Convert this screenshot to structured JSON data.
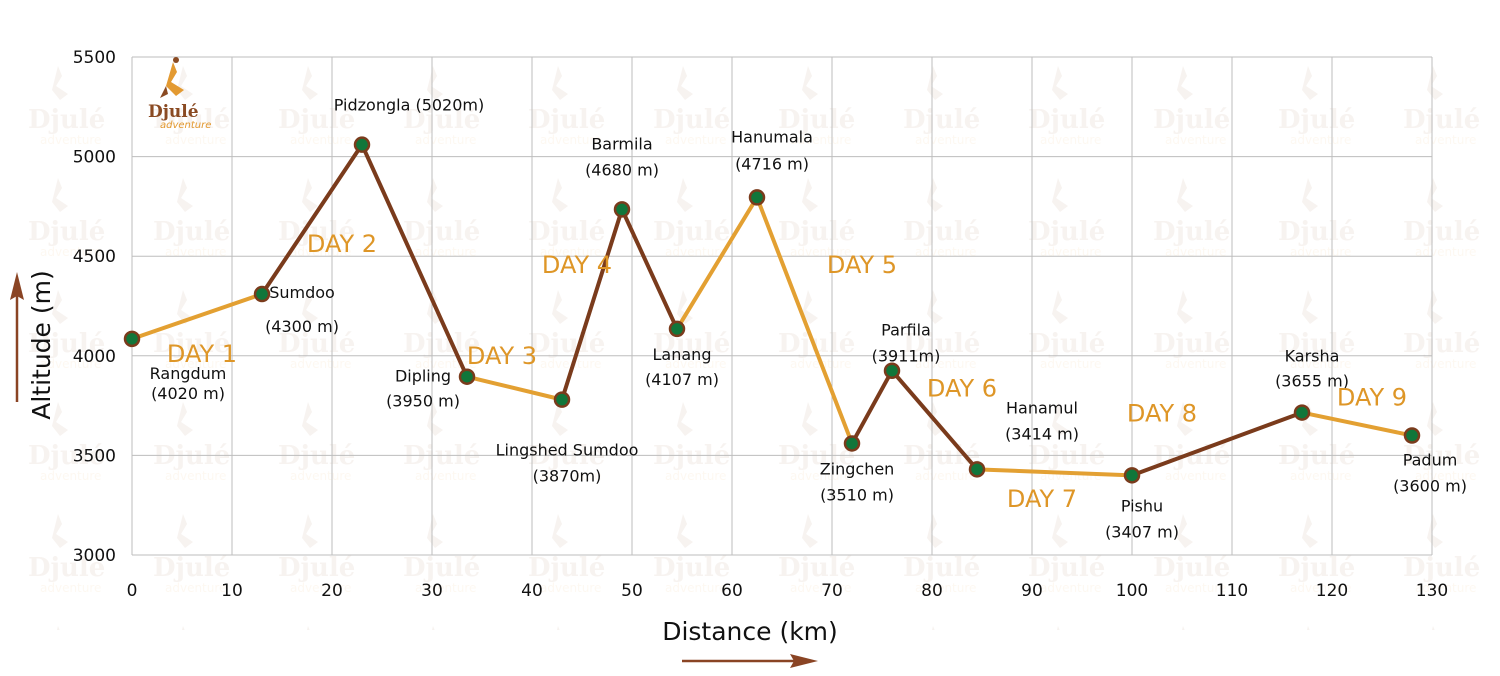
{
  "logo": {
    "name": "Djulé",
    "tagline": "adventure"
  },
  "colors": {
    "brown": "#7a3b1c",
    "orange": "#e3a032",
    "marker": "#11763a",
    "arrow": "#8a4424",
    "grid": "#bdbdbd",
    "day_label": "#de9627"
  },
  "chart_data": {
    "type": "line",
    "title": "",
    "xlabel": "Distance (km)",
    "ylabel": "Altitude (m)",
    "xlim": [
      0,
      130
    ],
    "ylim": [
      3000,
      5500
    ],
    "xticks": [
      0,
      10,
      20,
      30,
      40,
      50,
      60,
      70,
      80,
      90,
      100,
      110,
      120,
      130
    ],
    "yticks": [
      3000,
      3500,
      4000,
      4500,
      5000,
      5500
    ],
    "grid": true,
    "points": [
      {
        "name": "Rangdum",
        "alt_label": "(4020 m)",
        "x": 0,
        "y": 4085
      },
      {
        "name": "Sumdoo",
        "alt_label": "(4300 m)",
        "x": 13,
        "y": 4310
      },
      {
        "name": "Pidzongla (5020m)",
        "alt_label": "",
        "x": 23,
        "y": 5060
      },
      {
        "name": "Dipling",
        "alt_label": "(3950 m)",
        "x": 33.5,
        "y": 3895
      },
      {
        "name": "Lingshed Sumdoo",
        "alt_label": "(3870m)",
        "x": 43,
        "y": 3780
      },
      {
        "name": "Barmila",
        "alt_label": "(4680 m)",
        "x": 49,
        "y": 4735
      },
      {
        "name": "Lanang",
        "alt_label": "(4107 m)",
        "x": 54.5,
        "y": 4135
      },
      {
        "name": "Hanumala",
        "alt_label": "(4716 m)",
        "x": 62.5,
        "y": 4795
      },
      {
        "name": "Zingchen",
        "alt_label": "(3510 m)",
        "x": 72,
        "y": 3560
      },
      {
        "name": "Parfila",
        "alt_label": "(3911m)",
        "x": 76,
        "y": 3925
      },
      {
        "name": "Hanamul",
        "alt_label": "(3414 m)",
        "x": 84.5,
        "y": 3430
      },
      {
        "name": "Pishu",
        "alt_label": "(3407 m)",
        "x": 100,
        "y": 3400
      },
      {
        "name": "Karsha",
        "alt_label": "(3655 m)",
        "x": 117,
        "y": 3715
      },
      {
        "name": "Padum",
        "alt_label": "(3600 m)",
        "x": 128,
        "y": 3600
      }
    ],
    "segments": [
      {
        "day": "DAY 1",
        "from": "Rangdum",
        "to": "Sumdoo",
        "color": "orange"
      },
      {
        "day": "DAY 2",
        "from": "Sumdoo",
        "to": "Dipling",
        "color": "brown"
      },
      {
        "day": "DAY 3",
        "from": "Dipling",
        "to": "Lingshed Sumdoo",
        "color": "orange"
      },
      {
        "day": "DAY 4",
        "from": "Lingshed Sumdoo",
        "to": "Lanang",
        "color": "brown"
      },
      {
        "day": "DAY 5",
        "from": "Lanang",
        "to": "Zingchen",
        "color": "orange"
      },
      {
        "day": "DAY 6",
        "from": "Zingchen",
        "to": "Hanamul",
        "color": "brown"
      },
      {
        "day": "DAY 7",
        "from": "Hanamul",
        "to": "Pishu",
        "color": "orange"
      },
      {
        "day": "DAY 8",
        "from": "Pishu",
        "to": "Karsha",
        "color": "brown"
      },
      {
        "day": "DAY 9",
        "from": "Karsha",
        "to": "Padum",
        "color": "orange"
      }
    ]
  }
}
